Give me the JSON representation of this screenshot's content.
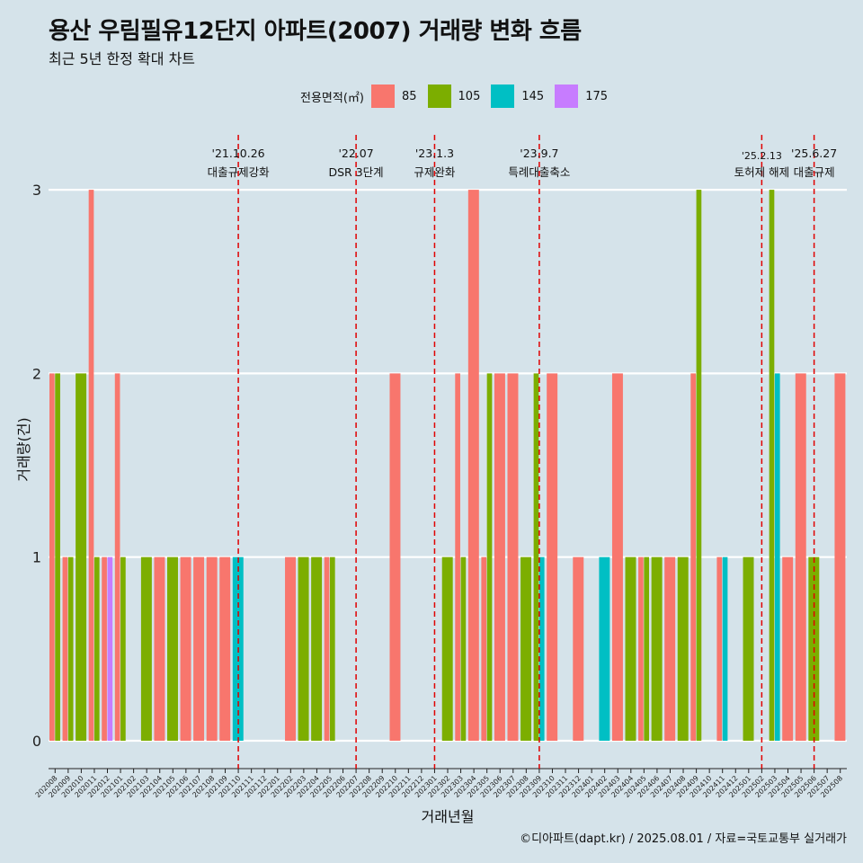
{
  "title": "용산 우림필유12단지 아파트(2007) 거래량 변화 흐름",
  "subtitle": "최근 5년 한정 확대 차트",
  "caption": "©디아파트(dapt.kr) / 2025.08.01 / 자료=국토교통부 실거래가",
  "legend": {
    "title": "전용면적(㎡)",
    "items": [
      {
        "label": "85",
        "color": "#f8766d"
      },
      {
        "label": "105",
        "color": "#7cae00"
      },
      {
        "label": "145",
        "color": "#00bfc4"
      },
      {
        "label": "175",
        "color": "#c77cff"
      }
    ]
  },
  "chart_data": {
    "type": "bar",
    "xlabel": "거래년월",
    "ylabel": "거래량(건)",
    "ylim": [
      0,
      3
    ],
    "y_ticks": [
      0,
      1,
      2,
      3
    ],
    "categories": [
      "202008",
      "202009",
      "202010",
      "202011",
      "202012",
      "202101",
      "202102",
      "202103",
      "202104",
      "202105",
      "202106",
      "202107",
      "202108",
      "202109",
      "202110",
      "202111",
      "202112",
      "202201",
      "202202",
      "202203",
      "202204",
      "202205",
      "202206",
      "202207",
      "202208",
      "202209",
      "202210",
      "202211",
      "202212",
      "202301",
      "202302",
      "202303",
      "202304",
      "202305",
      "202306",
      "202307",
      "202308",
      "202309",
      "202310",
      "202311",
      "202312",
      "202401",
      "202402",
      "202403",
      "202404",
      "202405",
      "202406",
      "202407",
      "202408",
      "202409",
      "202410",
      "202411",
      "202412",
      "202501",
      "202502",
      "202503",
      "202504",
      "202505",
      "202506",
      "202507",
      "202508"
    ],
    "series": [
      {
        "name": "85",
        "values": [
          2,
          1,
          0,
          3,
          1,
          2,
          0,
          0,
          1,
          0,
          1,
          1,
          1,
          1,
          0,
          0,
          0,
          0,
          1,
          0,
          0,
          1,
          0,
          0,
          0,
          0,
          2,
          0,
          0,
          0,
          0,
          2,
          3,
          1,
          2,
          2,
          0,
          0,
          2,
          0,
          1,
          0,
          0,
          2,
          0,
          1,
          0,
          1,
          0,
          2,
          0,
          1,
          0,
          0,
          0,
          0,
          1,
          2,
          0,
          0,
          2
        ]
      },
      {
        "name": "105",
        "values": [
          2,
          1,
          2,
          1,
          0,
          1,
          0,
          1,
          0,
          1,
          0,
          0,
          0,
          0,
          0,
          0,
          0,
          0,
          0,
          1,
          1,
          1,
          0,
          0,
          0,
          0,
          0,
          0,
          0,
          0,
          1,
          1,
          0,
          2,
          0,
          0,
          1,
          2,
          0,
          0,
          0,
          0,
          0,
          0,
          1,
          1,
          1,
          0,
          1,
          3,
          0,
          0,
          0,
          1,
          0,
          3,
          0,
          0,
          1,
          0,
          0
        ]
      },
      {
        "name": "145",
        "values": [
          0,
          0,
          0,
          0,
          0,
          0,
          0,
          0,
          0,
          0,
          0,
          0,
          0,
          0,
          1,
          0,
          0,
          0,
          0,
          0,
          0,
          0,
          0,
          0,
          0,
          0,
          0,
          0,
          0,
          0,
          0,
          0,
          0,
          0,
          0,
          0,
          0,
          1,
          0,
          0,
          0,
          0,
          1,
          0,
          0,
          0,
          0,
          0,
          0,
          0,
          0,
          1,
          0,
          0,
          0,
          2,
          0,
          0,
          0,
          0,
          0
        ]
      },
      {
        "name": "175",
        "values": [
          0,
          0,
          0,
          0,
          1,
          0,
          0,
          0,
          0,
          0,
          0,
          0,
          0,
          0,
          0,
          0,
          0,
          0,
          0,
          0,
          0,
          0,
          0,
          0,
          0,
          0,
          0,
          0,
          0,
          0,
          0,
          0,
          0,
          0,
          0,
          0,
          0,
          0,
          0,
          0,
          0,
          0,
          0,
          0,
          0,
          0,
          0,
          0,
          0,
          0,
          0,
          0,
          0,
          0,
          0,
          0,
          0,
          0,
          0,
          0,
          0
        ]
      }
    ],
    "events": [
      {
        "month": "202110",
        "date": "'21.10.26",
        "label": "대출규제강화"
      },
      {
        "month": "202207",
        "date": "'22.07",
        "label": "DSR 3단계"
      },
      {
        "month": "202301",
        "date": "'23.1.3",
        "label": "규제완화"
      },
      {
        "month": "202309",
        "date": "'23.9.7",
        "label": "특례대출축소"
      },
      {
        "month": "202502",
        "date": "'25.2.13",
        "label": "토허제 해제"
      },
      {
        "month": "202506",
        "date": "'25.6.27",
        "label": "대출규제"
      }
    ],
    "grid": true,
    "legend_position": "top"
  }
}
